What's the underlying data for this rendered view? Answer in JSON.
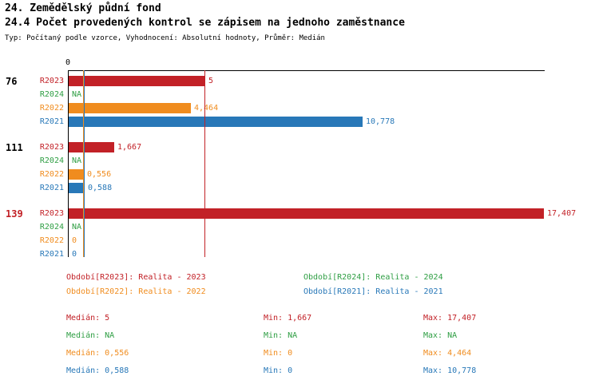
{
  "header": {
    "title": "24. Zemědělský půdní fond",
    "subtitle": "24.4 Počet provedených kontrol se zápisem na jednoho zaměstnance",
    "meta": "Typ: Počítaný podle vzorce, Vyhodnocení: Absolutní hodnoty, Průměr: Medián"
  },
  "colors": {
    "R2023": "#c22127",
    "R2024": "#2e9e43",
    "R2022": "#f08c1e",
    "R2021": "#2878b8",
    "axis": "#000000"
  },
  "chart_data": {
    "type": "bar",
    "orientation": "horizontal",
    "x_origin_label": "0",
    "xlim": [
      0,
      17.407
    ],
    "series_order": [
      "R2023",
      "R2024",
      "R2022",
      "R2021"
    ],
    "groups": [
      {
        "label": "76",
        "label_color": "#000000",
        "bars": [
          {
            "series": "R2023",
            "value": 5,
            "display": "5"
          },
          {
            "series": "R2024",
            "value": null,
            "display": "NA"
          },
          {
            "series": "R2022",
            "value": 4.464,
            "display": "4,464"
          },
          {
            "series": "R2021",
            "value": 10.778,
            "display": "10,778"
          }
        ]
      },
      {
        "label": "111",
        "label_color": "#000000",
        "bars": [
          {
            "series": "R2023",
            "value": 1.667,
            "display": "1,667"
          },
          {
            "series": "R2024",
            "value": null,
            "display": "NA"
          },
          {
            "series": "R2022",
            "value": 0.556,
            "display": "0,556"
          },
          {
            "series": "R2021",
            "value": 0.588,
            "display": "0,588"
          }
        ]
      },
      {
        "label": "139",
        "label_color": "#c22127",
        "bars": [
          {
            "series": "R2023",
            "value": 17.407,
            "display": "17,407"
          },
          {
            "series": "R2024",
            "value": null,
            "display": "NA"
          },
          {
            "series": "R2022",
            "value": 0,
            "display": "0"
          },
          {
            "series": "R2021",
            "value": 0,
            "display": "0"
          }
        ]
      }
    ],
    "reference_lines": [
      {
        "series": "R2022",
        "value": 0.556
      },
      {
        "series": "R2021",
        "value": 0.588
      },
      {
        "series": "R2023",
        "value": 5
      }
    ],
    "legend": [
      {
        "series": "R2023",
        "label": "Období[R2023]: Realita - 2023"
      },
      {
        "series": "R2024",
        "label": "Období[R2024]: Realita - 2024"
      },
      {
        "series": "R2022",
        "label": "Období[R2022]: Realita - 2022"
      },
      {
        "series": "R2021",
        "label": "Období[R2021]: Realita - 2021"
      }
    ],
    "stats": [
      {
        "series": "R2023",
        "median": "Medián: 5",
        "min": "Min: 1,667",
        "max": "Max: 17,407"
      },
      {
        "series": "R2024",
        "median": "Medián: NA",
        "min": "Min: NA",
        "max": "Max: NA"
      },
      {
        "series": "R2022",
        "median": "Medián: 0,556",
        "min": "Min: 0",
        "max": "Max: 4,464"
      },
      {
        "series": "R2021",
        "median": "Medián: 0,588",
        "min": "Min: 0",
        "max": "Max: 10,778"
      }
    ]
  }
}
